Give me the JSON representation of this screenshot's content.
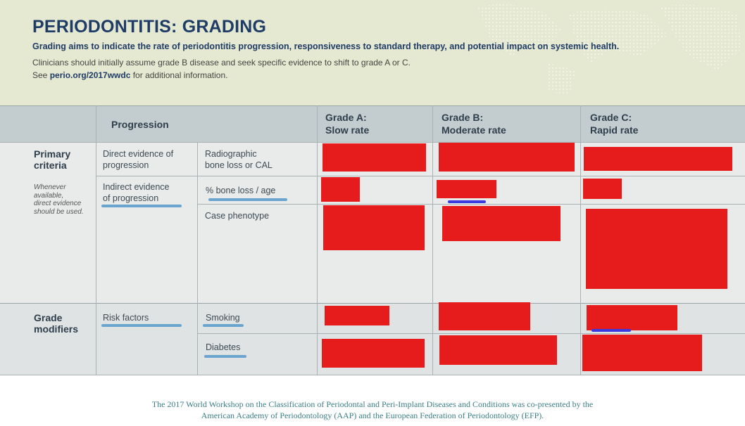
{
  "header": {
    "title": "PERIODONTITIS: GRADING",
    "subtitle": "Grading aims to indicate the rate of periodontitis progression, responsiveness to standard therapy, and potential impact on systemic health.",
    "note_line1": "Clinicians should initially assume grade B disease and seek specific evidence to shift to grade A or C.",
    "note_line2_prefix": "See ",
    "note_line2_link": "perio.org/2017wwdc",
    "note_line2_suffix": " for additional information."
  },
  "table": {
    "header": {
      "progression": "Progression",
      "grade_a_line1": "Grade A:",
      "grade_a_line2": "Slow rate",
      "grade_b_line1": "Grade B:",
      "grade_b_line2": "Moderate rate",
      "grade_c_line1": "Grade C:",
      "grade_c_line2": "Rapid rate"
    },
    "primary": {
      "title_line1": "Primary",
      "title_line2": "criteria",
      "note": [
        "Whenever",
        "available,",
        "direct evidence",
        "should be used."
      ],
      "direct_line1": "Direct evidence of",
      "direct_line2": "progression",
      "radiographic_line1": "Radiographic",
      "radiographic_line2": "bone loss or CAL",
      "indirect_line1": "Indirect evidence",
      "indirect_line2": "of progression",
      "bone_loss_age": "% bone loss / age",
      "case_phenotype": "Case phenotype"
    },
    "modifiers": {
      "title_line1": "Grade",
      "title_line2": "modifiers",
      "risk_factors": "Risk factors",
      "smoking": "Smoking",
      "diabetes": "Diabetes"
    }
  },
  "footer": {
    "line1": "The 2017 World Workshop on the Classification of Periodontal and Peri-Implant Diseases and Conditions was co-presented by the",
    "line2": "American Academy of Periodontology (AAP) and the European Federation of Periodontology (EFP)."
  },
  "colors": {
    "title": "#1f3c66",
    "header_band": "#e6e9d1",
    "table_header": "#c3cccf",
    "row_bg": "#e9ebeb",
    "redaction": "#e61c1c",
    "highlight": "#6aa5cf",
    "footer_text": "#3a7f86"
  },
  "icons": [
    "world-map-dots"
  ]
}
